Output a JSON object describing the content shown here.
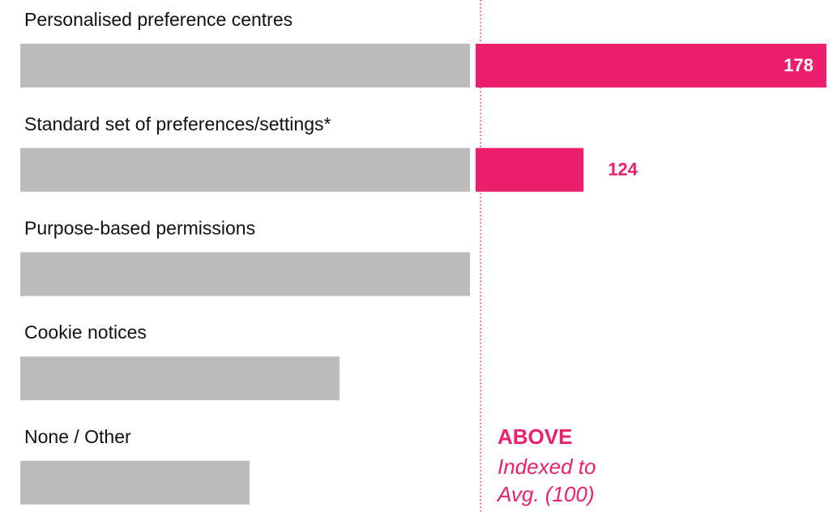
{
  "chart_data": {
    "type": "index_bar",
    "categories": [
      "Personalised preference centres",
      "Standard set of preferences/settings*",
      "Purpose-based permissions",
      "Cookie notices",
      "None / Other"
    ],
    "values": [
      178,
      124,
      100,
      71,
      51
    ],
    "reference": 100,
    "base_color": "#bbbbbb",
    "above_color": "#ec1f6e",
    "annotation": {
      "title": "ABOVE",
      "lines": [
        "Indexed to",
        "Avg. (100)"
      ]
    }
  }
}
